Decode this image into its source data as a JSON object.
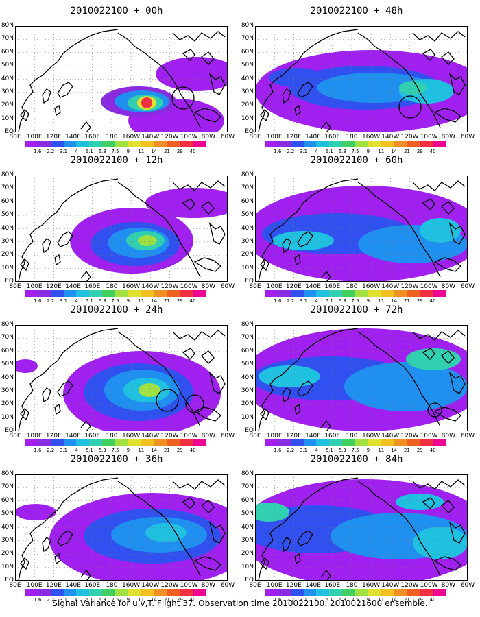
{
  "figure": {
    "caption": "Signal Variance for u,v,T. Flight 37. Observation time 2010022100. 2010021600 ensemble."
  },
  "axes": {
    "lat_ticks": [
      "EQ",
      "10N",
      "20N",
      "30N",
      "40N",
      "50N",
      "60N",
      "70N",
      "80N"
    ],
    "lon_ticks": [
      "80E",
      "100E",
      "120E",
      "140E",
      "160E",
      "180",
      "160W",
      "140W",
      "120W",
      "100W",
      "80W",
      "60W"
    ]
  },
  "colorbar": {
    "levels": [
      "1.6",
      "2.2",
      "3.1",
      "4",
      "5.1",
      "6.3",
      "7.5",
      "9",
      "11",
      "14",
      "21",
      "29",
      "40"
    ],
    "colors": [
      "#a020f0",
      "#8a2be2",
      "#3050f0",
      "#2090f0",
      "#20c0e0",
      "#30d0b0",
      "#40d060",
      "#a0e040",
      "#e0e030",
      "#f0c020",
      "#f09020",
      "#f06020",
      "#f03040",
      "#f00090"
    ]
  },
  "panels": [
    {
      "title": "2010022100 + 00h",
      "blobs": [
        {
          "cx": 235,
          "cy": 138,
          "rx": 70,
          "ry": 32,
          "level": 0
        },
        {
          "cx": 265,
          "cy": 70,
          "rx": 60,
          "ry": 25,
          "level": 0
        },
        {
          "cx": 180,
          "cy": 110,
          "rx": 55,
          "ry": 22,
          "level": 1
        },
        {
          "cx": 185,
          "cy": 110,
          "rx": 40,
          "ry": 16,
          "level": 3
        },
        {
          "cx": 190,
          "cy": 112,
          "rx": 26,
          "ry": 12,
          "level": 5
        },
        {
          "cx": 192,
          "cy": 112,
          "rx": 14,
          "ry": 10,
          "level": 8
        },
        {
          "cx": 192,
          "cy": 112,
          "rx": 8,
          "ry": 8,
          "level": 12
        }
      ],
      "circles": [
        {
          "cx": 245,
          "cy": 105,
          "r": 16
        }
      ]
    },
    {
      "title": "2010022100 + 48h",
      "blobs": [
        {
          "cx": 170,
          "cy": 95,
          "rx": 170,
          "ry": 60,
          "level": 0
        },
        {
          "cx": 160,
          "cy": 90,
          "rx": 110,
          "ry": 32,
          "level": 2
        },
        {
          "cx": 175,
          "cy": 90,
          "rx": 85,
          "ry": 22,
          "level": 3
        },
        {
          "cx": 250,
          "cy": 95,
          "rx": 40,
          "ry": 18,
          "level": 4
        },
        {
          "cx": 60,
          "cy": 75,
          "rx": 40,
          "ry": 14,
          "level": 2
        },
        {
          "cx": 230,
          "cy": 90,
          "rx": 20,
          "ry": 10,
          "level": 5
        }
      ],
      "circles": [
        {
          "cx": 226,
          "cy": 118,
          "r": 16
        }
      ]
    },
    {
      "title": "2010022100 + 12h",
      "blobs": [
        {
          "cx": 170,
          "cy": 95,
          "rx": 90,
          "ry": 48,
          "level": 0
        },
        {
          "cx": 260,
          "cy": 40,
          "rx": 70,
          "ry": 22,
          "level": 0
        },
        {
          "cx": 175,
          "cy": 100,
          "rx": 65,
          "ry": 32,
          "level": 2
        },
        {
          "cx": 180,
          "cy": 98,
          "rx": 45,
          "ry": 22,
          "level": 3
        },
        {
          "cx": 190,
          "cy": 95,
          "rx": 28,
          "ry": 14,
          "level": 5
        },
        {
          "cx": 193,
          "cy": 95,
          "rx": 14,
          "ry": 8,
          "level": 7
        }
      ],
      "circles": []
    },
    {
      "title": "2010022100 + 60h",
      "blobs": [
        {
          "cx": 160,
          "cy": 85,
          "rx": 175,
          "ry": 70,
          "level": 0
        },
        {
          "cx": 120,
          "cy": 85,
          "rx": 110,
          "ry": 30,
          "level": 2
        },
        {
          "cx": 230,
          "cy": 100,
          "rx": 80,
          "ry": 28,
          "level": 3
        },
        {
          "cx": 70,
          "cy": 95,
          "rx": 45,
          "ry": 14,
          "level": 4
        },
        {
          "cx": 270,
          "cy": 80,
          "rx": 30,
          "ry": 18,
          "level": 4
        }
      ],
      "circles": []
    },
    {
      "title": "2010022100 + 24h",
      "blobs": [
        {
          "cx": 185,
          "cy": 100,
          "rx": 115,
          "ry": 62,
          "level": 0
        },
        {
          "cx": 15,
          "cy": 60,
          "rx": 18,
          "ry": 10,
          "level": 0
        },
        {
          "cx": 180,
          "cy": 98,
          "rx": 80,
          "ry": 42,
          "level": 2
        },
        {
          "cx": 185,
          "cy": 95,
          "rx": 55,
          "ry": 30,
          "level": 3
        },
        {
          "cx": 192,
          "cy": 95,
          "rx": 34,
          "ry": 18,
          "level": 4
        },
        {
          "cx": 196,
          "cy": 95,
          "rx": 16,
          "ry": 10,
          "level": 7
        }
      ],
      "circles": [
        {
          "cx": 222,
          "cy": 110,
          "r": 16
        },
        {
          "cx": 262,
          "cy": 115,
          "r": 13
        }
      ]
    },
    {
      "title": "2010022100 + 72h",
      "blobs": [
        {
          "cx": 160,
          "cy": 80,
          "rx": 180,
          "ry": 75,
          "level": 0
        },
        {
          "cx": 110,
          "cy": 78,
          "rx": 115,
          "ry": 32,
          "level": 2
        },
        {
          "cx": 220,
          "cy": 90,
          "rx": 90,
          "ry": 36,
          "level": 3
        },
        {
          "cx": 50,
          "cy": 75,
          "rx": 45,
          "ry": 16,
          "level": 4
        },
        {
          "cx": 260,
          "cy": 50,
          "rx": 40,
          "ry": 16,
          "level": 5
        }
      ],
      "circles": [
        {
          "cx": 262,
          "cy": 124,
          "r": 10
        }
      ]
    },
    {
      "title": "2010022100 + 36h",
      "blobs": [
        {
          "cx": 200,
          "cy": 95,
          "rx": 150,
          "ry": 68,
          "level": 0
        },
        {
          "cx": 30,
          "cy": 55,
          "rx": 30,
          "ry": 12,
          "level": 0
        },
        {
          "cx": 200,
          "cy": 90,
          "rx": 100,
          "ry": 40,
          "level": 2
        },
        {
          "cx": 210,
          "cy": 88,
          "rx": 70,
          "ry": 26,
          "level": 3
        },
        {
          "cx": 220,
          "cy": 85,
          "rx": 30,
          "ry": 14,
          "level": 4
        }
      ],
      "circles": []
    },
    {
      "title": "2010022100 + 84h",
      "blobs": [
        {
          "cx": 160,
          "cy": 85,
          "rx": 185,
          "ry": 78,
          "level": 0
        },
        {
          "cx": 90,
          "cy": 80,
          "rx": 110,
          "ry": 35,
          "level": 2
        },
        {
          "cx": 210,
          "cy": 90,
          "rx": 100,
          "ry": 34,
          "level": 3
        },
        {
          "cx": 20,
          "cy": 55,
          "rx": 30,
          "ry": 14,
          "level": 5
        },
        {
          "cx": 270,
          "cy": 100,
          "rx": 40,
          "ry": 24,
          "level": 4
        },
        {
          "cx": 240,
          "cy": 40,
          "rx": 35,
          "ry": 12,
          "level": 4
        }
      ],
      "circles": []
    }
  ]
}
